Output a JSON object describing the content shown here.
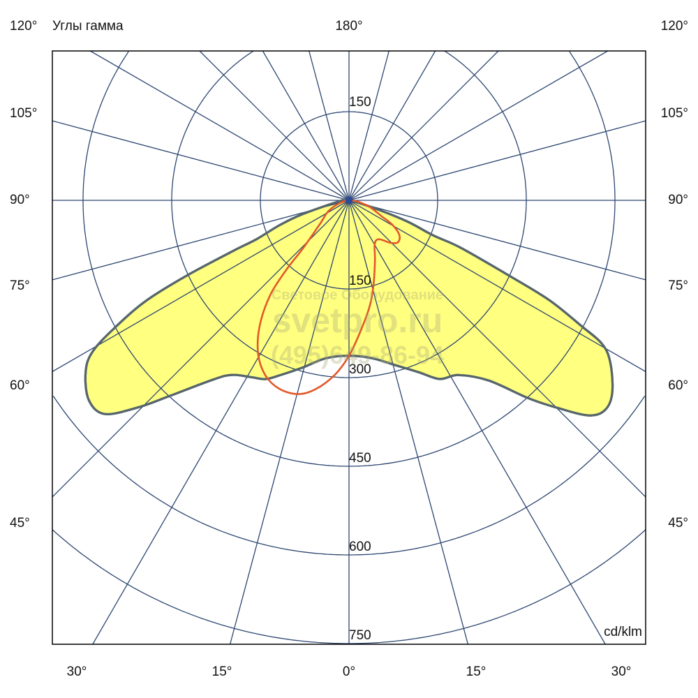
{
  "header": {
    "title": "Углы гамма"
  },
  "unit_label": "cd/klm",
  "watermark": {
    "line1": "Световое Оборудование",
    "line2": "svetpro.ru",
    "line3": "(495)649-86-94"
  },
  "colors": {
    "grid": "#2c4670",
    "fill": "#ffff80",
    "outline": "#56666c",
    "red_curve": "#e2582a",
    "frame": "#000000"
  },
  "chart_data": {
    "type": "polar",
    "title": "Углы гамма",
    "unit": "cd/klm",
    "radial_ticks": [
      150,
      300,
      450,
      600,
      750
    ],
    "radial_tick_labels": [
      {
        "value": 150,
        "text": "150",
        "side": "top"
      },
      {
        "value": 150,
        "text": "150",
        "side": "bottom"
      },
      {
        "value": 300,
        "text": "300",
        "side": "bottom"
      },
      {
        "value": 450,
        "text": "450",
        "side": "bottom"
      },
      {
        "value": 600,
        "text": "600",
        "side": "bottom"
      },
      {
        "value": 750,
        "text": "750",
        "side": "bottom"
      }
    ],
    "angle_step_deg": 15,
    "angle_labels": {
      "top_left": "120°",
      "top_center": "180°",
      "top_right": "120°",
      "left": [
        "105°",
        "90°",
        "75°",
        "60°",
        "45°"
      ],
      "right": [
        "105°",
        "90°",
        "75°",
        "60°",
        "45°"
      ],
      "bottom": [
        "30°",
        "15°",
        "0°",
        "15°",
        "30°"
      ]
    },
    "grid": true,
    "series": [
      {
        "style": "filled",
        "points": [
          [
            0,
            0
          ],
          [
            73.1,
            41
          ],
          [
            70.1,
            104
          ],
          [
            67.4,
            154
          ],
          [
            67.0,
            205
          ],
          [
            64.8,
            300
          ],
          [
            63.5,
            379
          ],
          [
            61.6,
            447
          ],
          [
            60.4,
            493
          ],
          [
            58.1,
            521
          ],
          [
            53.8,
            552
          ],
          [
            50.7,
            560
          ],
          [
            48.1,
            545
          ],
          [
            45.2,
            499
          ],
          [
            42.2,
            452
          ],
          [
            37.8,
            386
          ],
          [
            32.1,
            349
          ],
          [
            26.9,
            339
          ],
          [
            22.1,
            314
          ],
          [
            15.8,
            290
          ],
          [
            8.3,
            270
          ],
          [
            0,
            263
          ],
          [
            -8.3,
            270
          ],
          [
            -15.6,
            294
          ],
          [
            -21.7,
            319
          ],
          [
            -25.1,
            334
          ],
          [
            -29.0,
            342
          ],
          [
            -33.7,
            355
          ],
          [
            -37.0,
            379
          ],
          [
            -42.5,
            449
          ],
          [
            -45.4,
            498
          ],
          [
            -48.8,
            549
          ],
          [
            -52.5,
            555
          ],
          [
            -56.9,
            532
          ],
          [
            -59.5,
            503
          ],
          [
            -61.6,
            447
          ],
          [
            -63.7,
            382
          ],
          [
            -65.1,
            303
          ],
          [
            -66.4,
            215
          ],
          [
            -67.2,
            170
          ],
          [
            -70.2,
            126
          ],
          [
            -73.4,
            83
          ],
          [
            -85.6,
            15
          ]
        ]
      },
      {
        "style": "line",
        "points": [
          [
            0,
            0
          ],
          [
            -64.3,
            35
          ],
          [
            -50.1,
            66
          ],
          [
            -43.7,
            114
          ],
          [
            -42.0,
            159
          ],
          [
            -39.7,
            209
          ],
          [
            -35.4,
            261
          ],
          [
            -30.6,
            302
          ],
          [
            -25.6,
            328
          ],
          [
            -20.3,
            340
          ],
          [
            -14.7,
            339
          ],
          [
            -9.9,
            324
          ],
          [
            -4.6,
            296
          ],
          [
            0,
            263
          ],
          [
            5.2,
            221
          ],
          [
            11.3,
            181
          ],
          [
            16.3,
            148
          ],
          [
            23.3,
            111
          ],
          [
            30.4,
            86
          ],
          [
            37.5,
            83
          ],
          [
            44.5,
            101
          ],
          [
            49.4,
            109
          ],
          [
            55.2,
            104
          ],
          [
            60.3,
            86
          ],
          [
            63.9,
            62
          ],
          [
            73.5,
            33
          ]
        ]
      }
    ]
  }
}
